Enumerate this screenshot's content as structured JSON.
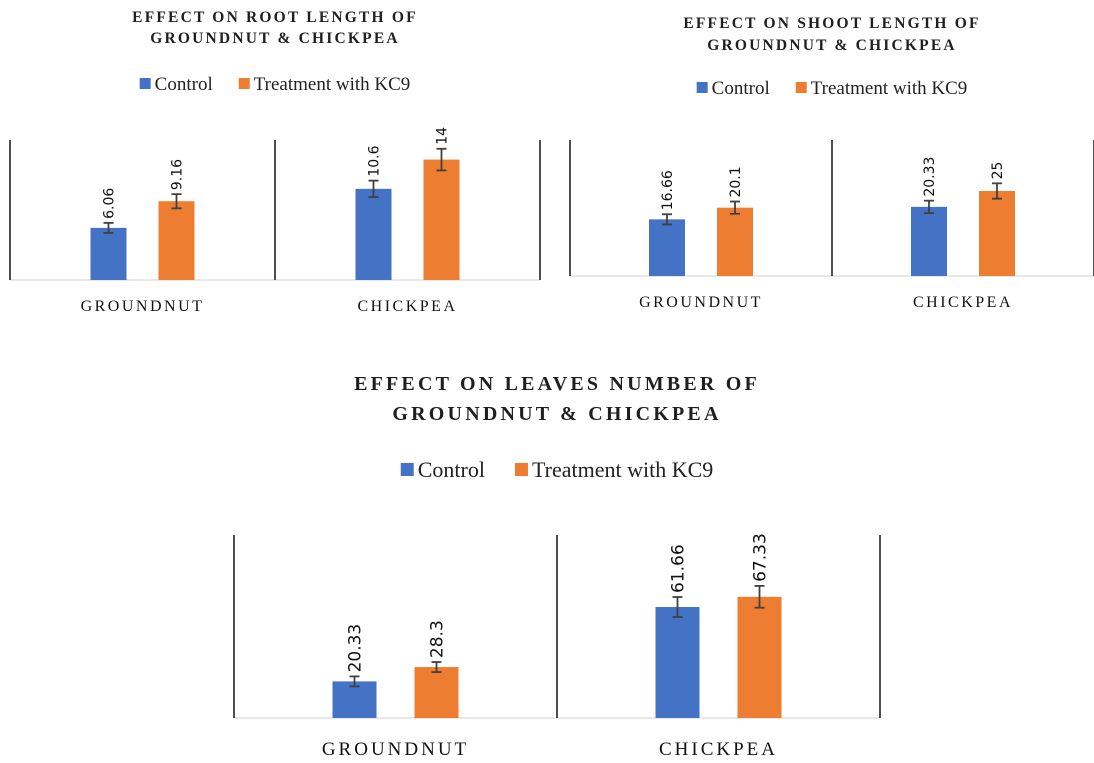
{
  "chart_data": [
    {
      "type": "bar",
      "title_lines": [
        "EFFECT ON ROOT LENGTH OF",
        "GROUNDNUT & CHICKPEA"
      ],
      "categories": [
        "GROUNDNUT",
        "CHICKPEA"
      ],
      "series": [
        {
          "name": "Control",
          "color": "#4472C4",
          "values": [
            6.06,
            10.6
          ],
          "labels": [
            "6.06",
            "10.6"
          ]
        },
        {
          "name": "Treatment with KC9",
          "color": "#ED7D31",
          "values": [
            9.16,
            14
          ],
          "labels": [
            "9.16",
            "14"
          ]
        }
      ],
      "error_bars": true,
      "legend_position": "top",
      "ylim": [
        0,
        20
      ]
    },
    {
      "type": "bar",
      "title_lines": [
        "EFFECT ON SHOOT LENGTH OF",
        "GROUNDNUT & CHICKPEA"
      ],
      "categories": [
        "GROUNDNUT",
        "CHICKPEA"
      ],
      "series": [
        {
          "name": "Control",
          "color": "#4472C4",
          "values": [
            16.66,
            20.33
          ],
          "labels": [
            "16.66",
            "20.33"
          ]
        },
        {
          "name": "Treatment with KC9",
          "color": "#ED7D31",
          "values": [
            20.1,
            25
          ],
          "labels": [
            "20.1",
            "25"
          ]
        }
      ],
      "error_bars": true,
      "legend_position": "top",
      "ylim": [
        0,
        40
      ]
    },
    {
      "type": "bar",
      "title_lines": [
        "EFFECT ON LEAVES NUMBER OF",
        "GROUNDNUT & CHICKPEA"
      ],
      "categories": [
        "GROUNDNUT",
        "CHICKPEA"
      ],
      "series": [
        {
          "name": "Control",
          "color": "#4472C4",
          "values": [
            20.33,
            61.66
          ],
          "labels": [
            "20.33",
            "61.66"
          ]
        },
        {
          "name": "Treatment with KC9",
          "color": "#ED7D31",
          "values": [
            28.3,
            67.33
          ],
          "labels": [
            "28.3",
            "67.33"
          ]
        }
      ],
      "error_bars": true,
      "legend_position": "top",
      "ylim": [
        0,
        100
      ]
    }
  ]
}
